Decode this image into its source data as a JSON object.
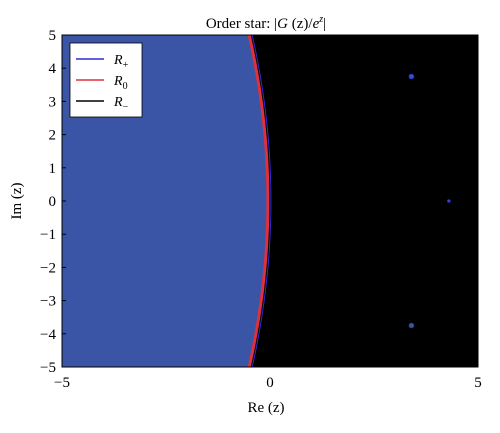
{
  "chart_data": {
    "type": "contour",
    "title_prefix": "Order star: |",
    "title_g": "G",
    "title_mid": " (z)/",
    "title_e": "e",
    "title_sup": "z",
    "title_suffix": "|",
    "xlabel": "Re (z)",
    "ylabel": "Im (z)",
    "xlim": [
      -5,
      5
    ],
    "ylim": [
      -5,
      5
    ],
    "xticks": [
      "−5",
      "0",
      "5"
    ],
    "yticks": [
      "5",
      "4",
      "3",
      "2",
      "1",
      "0",
      "−1",
      "−2",
      "−3",
      "−4",
      "−5"
    ],
    "legend_position": "top-left",
    "legend": [
      {
        "symbol": "R",
        "sub": "+",
        "color": "#2b2bd6"
      },
      {
        "symbol": "R",
        "sub": "0",
        "color": "#e0303c"
      },
      {
        "symbol": "R",
        "sub": "−",
        "color": "#000000"
      }
    ],
    "regions": {
      "R_plus_fill": "#3a55a5",
      "R_minus_fill": "#000000",
      "R_plus_outline": "#2b2bd6",
      "R_zero_outline": "#e0303c"
    },
    "boundary": {
      "x_at_y0": -0.05,
      "x_at_y_pm5": -0.5
    },
    "islands": [
      {
        "x": 3.4,
        "y": 3.75
      },
      {
        "x": 4.3,
        "y": 0.0
      },
      {
        "x": 3.4,
        "y": -3.75
      }
    ]
  }
}
